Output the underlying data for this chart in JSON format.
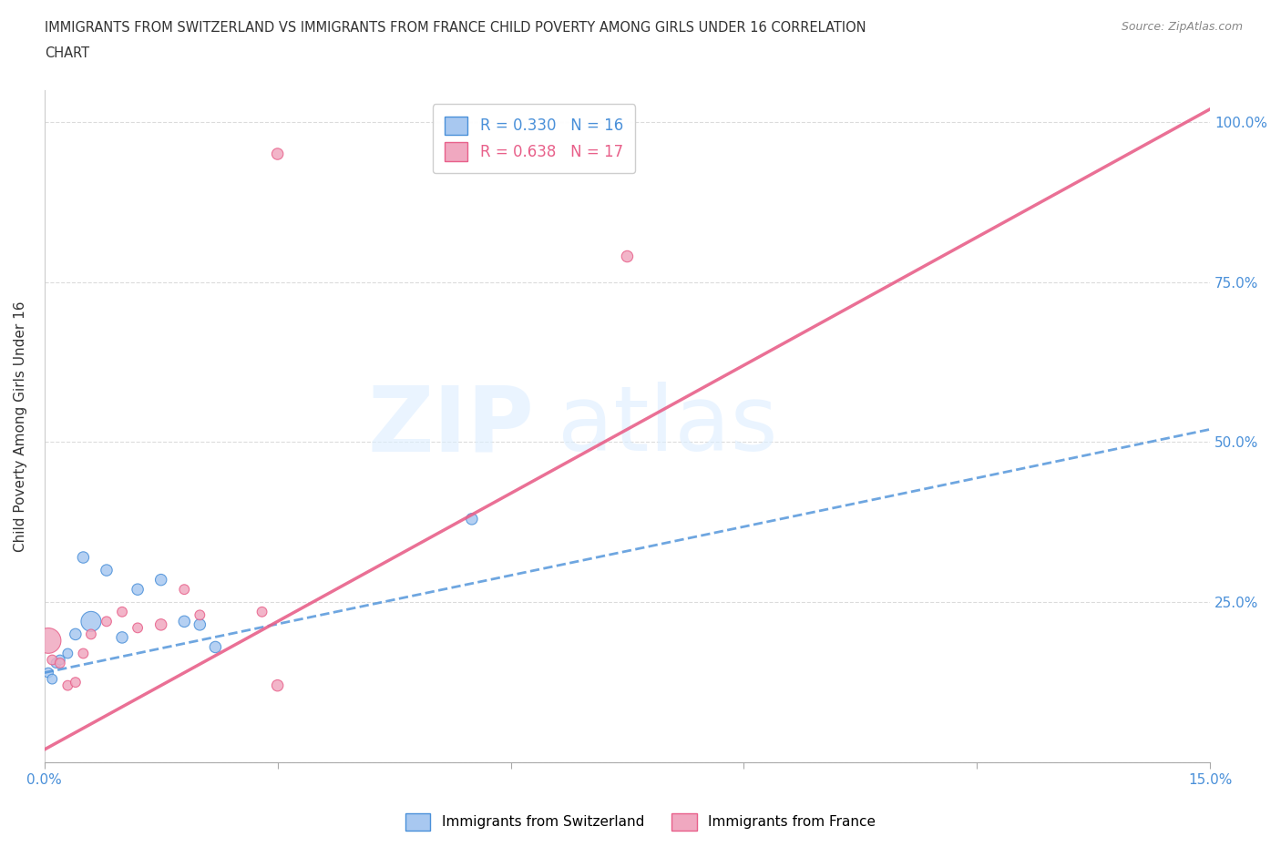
{
  "title_line1": "IMMIGRANTS FROM SWITZERLAND VS IMMIGRANTS FROM FRANCE CHILD POVERTY AMONG GIRLS UNDER 16 CORRELATION",
  "title_line2": "CHART",
  "source": "Source: ZipAtlas.com",
  "xlabel": "",
  "ylabel": "Child Poverty Among Girls Under 16",
  "xlim": [
    0.0,
    0.15
  ],
  "ylim": [
    0.0,
    1.05
  ],
  "xticks": [
    0.0,
    0.03,
    0.06,
    0.09,
    0.12,
    0.15
  ],
  "xticklabels": [
    "0.0%",
    "",
    "",
    "",
    "",
    "15.0%"
  ],
  "ytick_positions": [
    0.0,
    0.25,
    0.5,
    0.75,
    1.0
  ],
  "ytick_labels": [
    "",
    "25.0%",
    "50.0%",
    "75.0%",
    "100.0%"
  ],
  "r_switzerland": 0.33,
  "n_switzerland": 16,
  "r_france": 0.638,
  "n_france": 17,
  "color_switzerland": "#a8c8f0",
  "color_france": "#f0a8c0",
  "line_color_switzerland": "#4a90d9",
  "line_color_france": "#e8608a",
  "france_trendline_x": [
    0.0,
    0.15
  ],
  "france_trendline_y": [
    0.02,
    1.02
  ],
  "switzerland_trendline_x": [
    0.0,
    0.15
  ],
  "switzerland_trendline_y": [
    0.14,
    0.52
  ],
  "switzerland_x": [
    0.0005,
    0.001,
    0.0015,
    0.002,
    0.003,
    0.004,
    0.005,
    0.006,
    0.008,
    0.01,
    0.012,
    0.015,
    0.018,
    0.02,
    0.022,
    0.055
  ],
  "switzerland_y": [
    0.14,
    0.13,
    0.155,
    0.16,
    0.17,
    0.2,
    0.32,
    0.22,
    0.3,
    0.195,
    0.27,
    0.285,
    0.22,
    0.215,
    0.18,
    0.38
  ],
  "switzerland_size": [
    60,
    60,
    60,
    60,
    60,
    80,
    80,
    250,
    80,
    80,
    80,
    80,
    80,
    80,
    80,
    80
  ],
  "france_x": [
    0.0005,
    0.001,
    0.002,
    0.003,
    0.004,
    0.005,
    0.006,
    0.008,
    0.01,
    0.012,
    0.015,
    0.018,
    0.02,
    0.028,
    0.03,
    0.075,
    0.03
  ],
  "france_y": [
    0.19,
    0.16,
    0.155,
    0.12,
    0.125,
    0.17,
    0.2,
    0.22,
    0.235,
    0.21,
    0.215,
    0.27,
    0.23,
    0.235,
    0.12,
    0.79,
    0.95
  ],
  "france_size": [
    400,
    60,
    60,
    60,
    60,
    60,
    60,
    60,
    60,
    60,
    80,
    60,
    60,
    60,
    80,
    80,
    80
  ]
}
